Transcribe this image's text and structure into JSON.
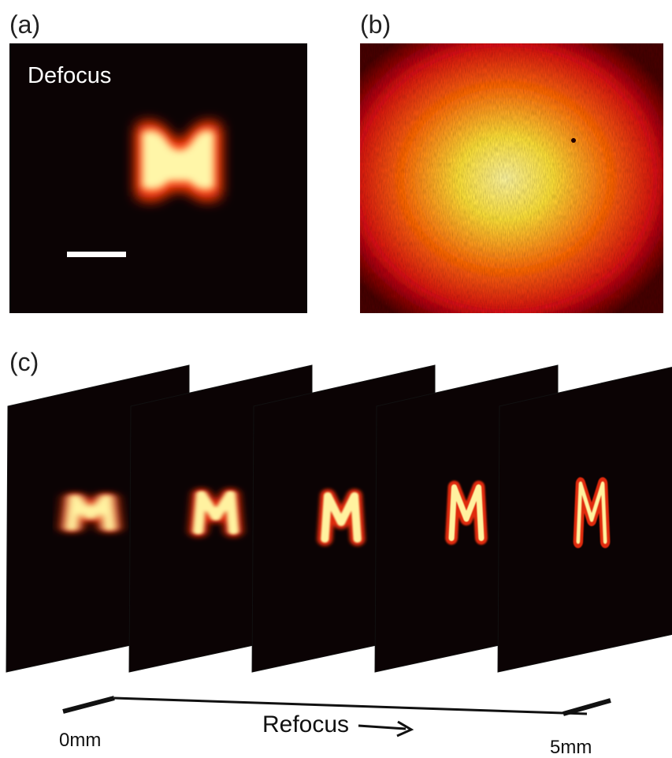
{
  "panels": [
    {
      "label": "(a)",
      "caption": "Defocus"
    },
    {
      "label": "(b)"
    },
    {
      "label": "(c)",
      "axis": {
        "start": "0mm",
        "end": "5mm",
        "title": "Refocus"
      }
    }
  ]
}
